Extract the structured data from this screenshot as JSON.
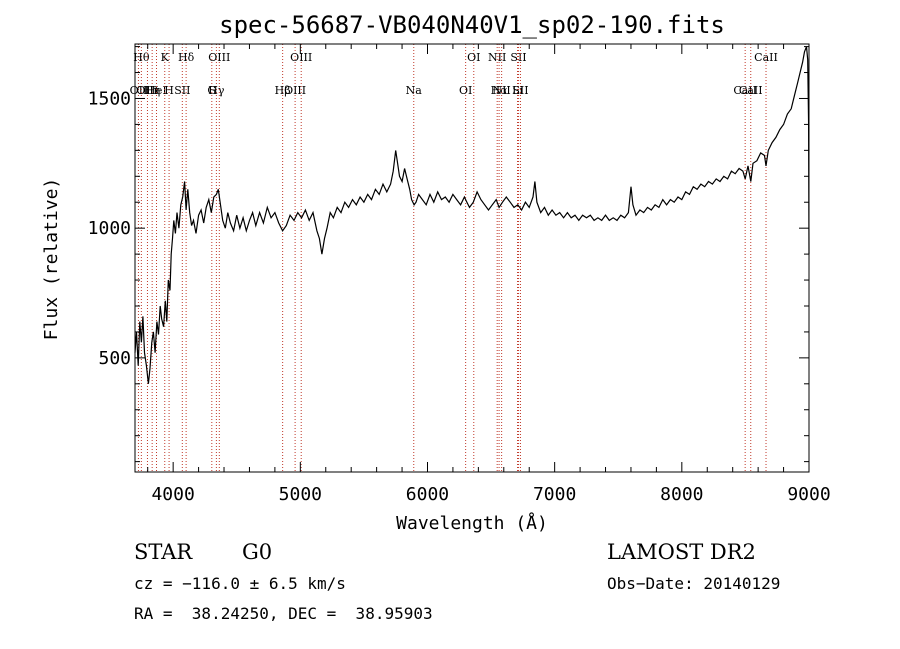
{
  "chart_data": {
    "type": "line",
    "title": "spec-56687-VB040N40V1_sp02-190.fits",
    "xlabel": "Wavelength (Å)",
    "ylabel": "Flux (relative)",
    "xlim": [
      3700,
      9000
    ],
    "ylim": [
      60,
      1710
    ],
    "x_ticks": [
      4000,
      5000,
      6000,
      7000,
      8000,
      9000
    ],
    "y_ticks": [
      500,
      1000,
      1500
    ],
    "grid": false,
    "series": [
      {
        "points": [
          [
            3700,
            520
          ],
          [
            3712,
            600
          ],
          [
            3725,
            470
          ],
          [
            3738,
            640
          ],
          [
            3750,
            560
          ],
          [
            3762,
            660
          ],
          [
            3775,
            520
          ],
          [
            3790,
            470
          ],
          [
            3805,
            400
          ],
          [
            3818,
            460
          ],
          [
            3832,
            560
          ],
          [
            3845,
            600
          ],
          [
            3858,
            520
          ],
          [
            3872,
            640
          ],
          [
            3885,
            590
          ],
          [
            3898,
            700
          ],
          [
            3910,
            650
          ],
          [
            3925,
            620
          ],
          [
            3938,
            720
          ],
          [
            3950,
            640
          ],
          [
            3962,
            800
          ],
          [
            3975,
            760
          ],
          [
            3985,
            900
          ],
          [
            3995,
            960
          ],
          [
            4005,
            1030
          ],
          [
            4018,
            980
          ],
          [
            4030,
            1060
          ],
          [
            4045,
            1000
          ],
          [
            4060,
            1090
          ],
          [
            4075,
            1120
          ],
          [
            4090,
            1180
          ],
          [
            4102,
            1070
          ],
          [
            4115,
            1150
          ],
          [
            4130,
            1060
          ],
          [
            4145,
            1010
          ],
          [
            4160,
            1030
          ],
          [
            4180,
            980
          ],
          [
            4200,
            1050
          ],
          [
            4220,
            1070
          ],
          [
            4240,
            1020
          ],
          [
            4260,
            1080
          ],
          [
            4280,
            1110
          ],
          [
            4300,
            1060
          ],
          [
            4320,
            1120
          ],
          [
            4340,
            1130
          ],
          [
            4355,
            1150
          ],
          [
            4372,
            1090
          ],
          [
            4390,
            1030
          ],
          [
            4410,
            1000
          ],
          [
            4430,
            1060
          ],
          [
            4450,
            1020
          ],
          [
            4475,
            990
          ],
          [
            4500,
            1050
          ],
          [
            4525,
            1000
          ],
          [
            4550,
            1040
          ],
          [
            4575,
            990
          ],
          [
            4600,
            1030
          ],
          [
            4625,
            1060
          ],
          [
            4650,
            1010
          ],
          [
            4680,
            1060
          ],
          [
            4710,
            1020
          ],
          [
            4740,
            1080
          ],
          [
            4770,
            1040
          ],
          [
            4800,
            1060
          ],
          [
            4830,
            1020
          ],
          [
            4861,
            990
          ],
          [
            4890,
            1010
          ],
          [
            4920,
            1050
          ],
          [
            4950,
            1030
          ],
          [
            4980,
            1060
          ],
          [
            5010,
            1040
          ],
          [
            5040,
            1070
          ],
          [
            5070,
            1030
          ],
          [
            5100,
            1060
          ],
          [
            5130,
            990
          ],
          [
            5150,
            960
          ],
          [
            5170,
            900
          ],
          [
            5190,
            960
          ],
          [
            5210,
            1000
          ],
          [
            5235,
            1060
          ],
          [
            5260,
            1040
          ],
          [
            5290,
            1080
          ],
          [
            5320,
            1060
          ],
          [
            5350,
            1100
          ],
          [
            5380,
            1080
          ],
          [
            5410,
            1110
          ],
          [
            5440,
            1090
          ],
          [
            5470,
            1120
          ],
          [
            5500,
            1100
          ],
          [
            5530,
            1130
          ],
          [
            5560,
            1110
          ],
          [
            5590,
            1150
          ],
          [
            5620,
            1130
          ],
          [
            5650,
            1170
          ],
          [
            5680,
            1140
          ],
          [
            5710,
            1170
          ],
          [
            5730,
            1220
          ],
          [
            5750,
            1300
          ],
          [
            5765,
            1250
          ],
          [
            5780,
            1200
          ],
          [
            5800,
            1180
          ],
          [
            5820,
            1230
          ],
          [
            5840,
            1190
          ],
          [
            5860,
            1150
          ],
          [
            5875,
            1110
          ],
          [
            5895,
            1090
          ],
          [
            5910,
            1100
          ],
          [
            5930,
            1130
          ],
          [
            5960,
            1110
          ],
          [
            5990,
            1090
          ],
          [
            6020,
            1130
          ],
          [
            6050,
            1100
          ],
          [
            6080,
            1140
          ],
          [
            6110,
            1110
          ],
          [
            6140,
            1120
          ],
          [
            6170,
            1100
          ],
          [
            6200,
            1130
          ],
          [
            6230,
            1110
          ],
          [
            6260,
            1090
          ],
          [
            6290,
            1120
          ],
          [
            6310,
            1100
          ],
          [
            6330,
            1080
          ],
          [
            6360,
            1100
          ],
          [
            6390,
            1140
          ],
          [
            6420,
            1110
          ],
          [
            6450,
            1090
          ],
          [
            6480,
            1070
          ],
          [
            6510,
            1090
          ],
          [
            6540,
            1110
          ],
          [
            6563,
            1080
          ],
          [
            6590,
            1100
          ],
          [
            6620,
            1120
          ],
          [
            6650,
            1100
          ],
          [
            6680,
            1080
          ],
          [
            6710,
            1090
          ],
          [
            6740,
            1070
          ],
          [
            6770,
            1100
          ],
          [
            6800,
            1080
          ],
          [
            6830,
            1120
          ],
          [
            6845,
            1180
          ],
          [
            6860,
            1100
          ],
          [
            6890,
            1060
          ],
          [
            6920,
            1080
          ],
          [
            6950,
            1050
          ],
          [
            6980,
            1070
          ],
          [
            7010,
            1050
          ],
          [
            7040,
            1060
          ],
          [
            7070,
            1040
          ],
          [
            7100,
            1060
          ],
          [
            7130,
            1040
          ],
          [
            7160,
            1050
          ],
          [
            7190,
            1030
          ],
          [
            7220,
            1050
          ],
          [
            7250,
            1040
          ],
          [
            7280,
            1050
          ],
          [
            7310,
            1030
          ],
          [
            7340,
            1040
          ],
          [
            7370,
            1030
          ],
          [
            7400,
            1050
          ],
          [
            7430,
            1030
          ],
          [
            7460,
            1040
          ],
          [
            7490,
            1030
          ],
          [
            7520,
            1050
          ],
          [
            7550,
            1040
          ],
          [
            7580,
            1060
          ],
          [
            7600,
            1160
          ],
          [
            7615,
            1090
          ],
          [
            7640,
            1050
          ],
          [
            7670,
            1070
          ],
          [
            7700,
            1060
          ],
          [
            7730,
            1080
          ],
          [
            7760,
            1070
          ],
          [
            7790,
            1090
          ],
          [
            7820,
            1080
          ],
          [
            7850,
            1110
          ],
          [
            7880,
            1090
          ],
          [
            7910,
            1110
          ],
          [
            7940,
            1100
          ],
          [
            7970,
            1120
          ],
          [
            8000,
            1110
          ],
          [
            8030,
            1140
          ],
          [
            8060,
            1130
          ],
          [
            8090,
            1160
          ],
          [
            8120,
            1150
          ],
          [
            8150,
            1170
          ],
          [
            8180,
            1160
          ],
          [
            8210,
            1180
          ],
          [
            8240,
            1170
          ],
          [
            8270,
            1190
          ],
          [
            8300,
            1180
          ],
          [
            8330,
            1200
          ],
          [
            8360,
            1190
          ],
          [
            8390,
            1220
          ],
          [
            8420,
            1210
          ],
          [
            8450,
            1230
          ],
          [
            8480,
            1220
          ],
          [
            8498,
            1190
          ],
          [
            8520,
            1240
          ],
          [
            8542,
            1180
          ],
          [
            8560,
            1250
          ],
          [
            8590,
            1260
          ],
          [
            8620,
            1290
          ],
          [
            8650,
            1280
          ],
          [
            8662,
            1240
          ],
          [
            8680,
            1300
          ],
          [
            8710,
            1330
          ],
          [
            8740,
            1350
          ],
          [
            8770,
            1380
          ],
          [
            8800,
            1400
          ],
          [
            8830,
            1440
          ],
          [
            8860,
            1460
          ],
          [
            8890,
            1520
          ],
          [
            8910,
            1560
          ],
          [
            8930,
            1600
          ],
          [
            8950,
            1640
          ],
          [
            8965,
            1680
          ],
          [
            8980,
            1700
          ],
          [
            8990,
            1650
          ],
          [
            8997,
            1400
          ],
          [
            9000,
            900
          ]
        ]
      }
    ],
    "line_markers": [
      {
        "wavelength": 3727,
        "label": "OII",
        "row": 2
      },
      {
        "wavelength": 3750,
        "label": "Hθ",
        "row": 0
      },
      {
        "wavelength": 3798,
        "label": "OIII",
        "row": 3
      },
      {
        "wavelength": 3835,
        "label": "Hη",
        "row": 3
      },
      {
        "wavelength": 3869,
        "label": "HeI",
        "row": 2
      },
      {
        "wavelength": 3934,
        "label": "K",
        "row": 0
      },
      {
        "wavelength": 3968,
        "label": "H",
        "row": 3
      },
      {
        "wavelength": 4072,
        "label": "SII",
        "row": 2
      },
      {
        "wavelength": 4102,
        "label": "Hδ",
        "row": 0
      },
      {
        "wavelength": 4304,
        "label": "G",
        "row": 3
      },
      {
        "wavelength": 4340,
        "label": "Hγ",
        "row": 2
      },
      {
        "wavelength": 4363,
        "label": "OIII",
        "row": 0
      },
      {
        "wavelength": 4861,
        "label": "Hβ",
        "row": 3
      },
      {
        "wavelength": 4959,
        "label": "OIII",
        "row": 2
      },
      {
        "wavelength": 5007,
        "label": "OIII",
        "row": 0
      },
      {
        "wavelength": 5892,
        "label": "Na",
        "row": 3
      },
      {
        "wavelength": 6300,
        "label": "OI",
        "row": 2
      },
      {
        "wavelength": 6364,
        "label": "OI",
        "row": 0
      },
      {
        "wavelength": 6548,
        "label": "NII",
        "row": 0
      },
      {
        "wavelength": 6563,
        "label": "Hα",
        "row": 2
      },
      {
        "wavelength": 6583,
        "label": "NII",
        "row": 3
      },
      {
        "wavelength": 6708,
        "label": "Li",
        "row": 3
      },
      {
        "wavelength": 6716,
        "label": "SII",
        "row": 0
      },
      {
        "wavelength": 6731,
        "label": "SII",
        "row": 2
      },
      {
        "wavelength": 8498,
        "label": "CaII",
        "row": 3
      },
      {
        "wavelength": 8542,
        "label": "CaII",
        "row": 2
      },
      {
        "wavelength": 8662,
        "label": "CaII",
        "row": 0
      }
    ]
  },
  "info": {
    "object_class": "STAR",
    "subclass": "G0",
    "survey": "LAMOST DR2",
    "redshift": "cz = −116.0 ± 6.5 km/s",
    "obs_date": "Obs−Date: 20140129",
    "coordinates": "RA =  38.24250, DEC =  38.95903"
  }
}
